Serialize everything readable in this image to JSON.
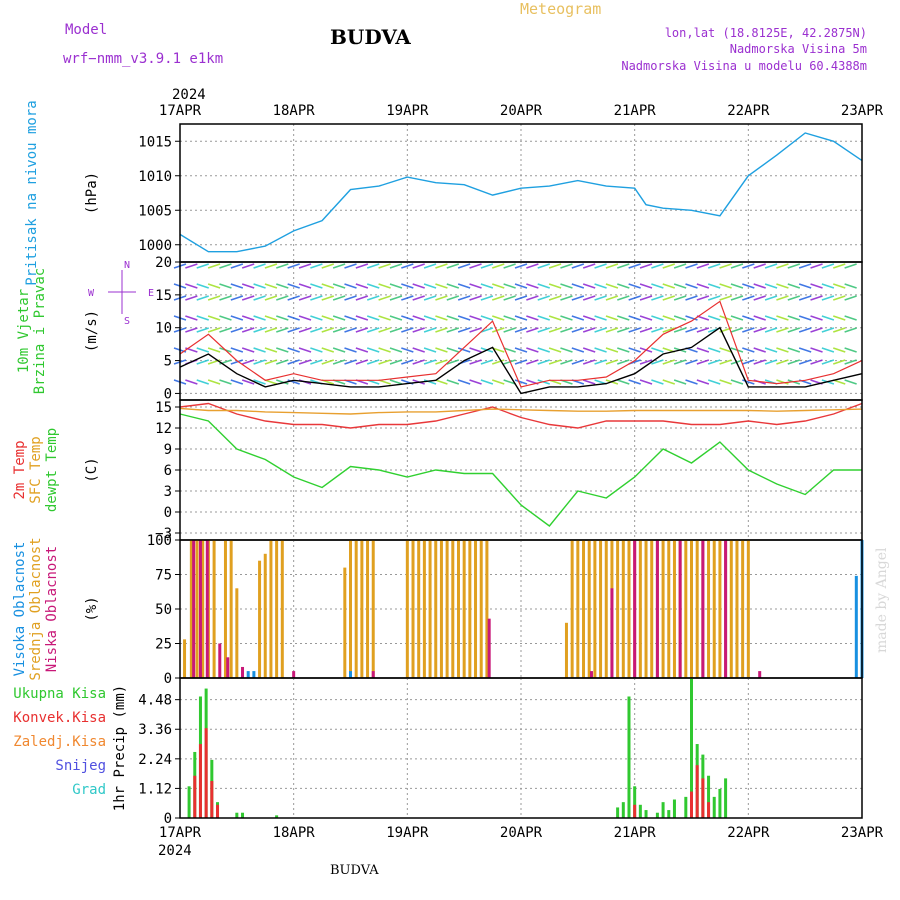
{
  "header": {
    "model_label": "Model",
    "model_name": "wrf−nmm_v3.9.1  e1km",
    "title": "BUDVA",
    "meteogram": "Meteogram",
    "lonlat": "lon,lat (18.8125E, 42.2875N)",
    "elevation": "Nadmorska Visina 5m",
    "model_elevation": "Nadmorska Visina u modelu 60.4388m",
    "footer_title": "BUDVA",
    "credit": "made by Angel"
  },
  "chart_data": {
    "type": "line",
    "year": "2024",
    "x_ticks": [
      "17APR",
      "18APR",
      "19APR",
      "20APR",
      "21APR",
      "22APR",
      "23APR"
    ],
    "colors": {
      "pressure": "#1fa0e0",
      "temp2m": "#e8383a",
      "sfc": "#e8a030",
      "dewpt": "#30d030",
      "high_cloud": "#1890e0",
      "mid_cloud": "#e0a020",
      "low_cloud": "#c81878",
      "total_precip": "#30c830",
      "conv_precip": "#e83030",
      "frozen_precip": "#f08830",
      "snow": "#5050e0",
      "hail": "#30c8c8",
      "wind_speed": "#000000",
      "gust": "#e83030"
    },
    "panels": [
      {
        "id": "pressure",
        "labels": [
          "Pritisak na nivou mora"
        ],
        "unit": "(hPa)",
        "yticks": [
          1000,
          1005,
          1010,
          1015
        ],
        "ylim": [
          997.5,
          1017.5
        ],
        "series": [
          {
            "key": "pressure",
            "x": [
              0,
              0.25,
              0.5,
              0.75,
              1,
              1.25,
              1.5,
              1.75,
              2,
              2.25,
              2.5,
              2.75,
              3,
              3.25,
              3.5,
              3.75,
              4,
              4.1,
              4.25,
              4.5,
              4.75,
              5,
              5.25,
              5.5,
              5.75,
              6
            ],
            "y": [
              1001.5,
              999,
              999,
              999.8,
              1002,
              1003.5,
              1008,
              1008.5,
              1009.8,
              1009,
              1008.7,
              1007.2,
              1008.2,
              1008.5,
              1009.3,
              1008.5,
              1008.2,
              1005.8,
              1005.3,
              1005,
              1004.2,
              1010,
              1013,
              1016.2,
              1015,
              1012.2
            ]
          }
        ]
      },
      {
        "id": "wind",
        "labels": [
          "10m Vjetar",
          "Brzina i Pravac"
        ],
        "unit": "(m/s)",
        "compass": [
          "N",
          "W",
          "E",
          "S"
        ],
        "yticks": [
          0,
          5,
          10,
          15,
          20
        ],
        "ylim": [
          -1,
          20
        ],
        "series": [
          {
            "key": "wind_speed",
            "x": [
              0,
              0.25,
              0.5,
              0.75,
              1,
              1.25,
              1.5,
              1.75,
              2,
              2.25,
              2.5,
              2.75,
              3,
              3.25,
              3.5,
              3.75,
              4,
              4.25,
              4.5,
              4.75,
              5,
              5.25,
              5.5,
              5.75,
              6
            ],
            "y": [
              4,
              6,
              3,
              1,
              2,
              1.5,
              1,
              1,
              1.5,
              2,
              5,
              7,
              0,
              1,
              1,
              1.5,
              3,
              6,
              7,
              10,
              1,
              1,
              1,
              2,
              3
            ]
          },
          {
            "key": "gust",
            "x": [
              0,
              0.25,
              0.5,
              0.75,
              1,
              1.25,
              1.5,
              1.75,
              2,
              2.25,
              2.5,
              2.75,
              3,
              3.25,
              3.5,
              3.75,
              4,
              4.25,
              4.5,
              4.75,
              5,
              5.25,
              5.5,
              5.75,
              6
            ],
            "y": [
              6,
              9,
              5,
              2,
              3,
              2,
              2,
              2,
              2.5,
              3,
              7,
              11,
              1,
              2,
              2,
              2.5,
              5,
              9,
              11,
              14,
              2,
              1.5,
              2,
              3,
              5
            ]
          }
        ]
      },
      {
        "id": "temperature",
        "labels": [
          "2m Temp",
          "SFC Temp",
          "dewpt Temp"
        ],
        "unit": "(C)",
        "yticks": [
          -3,
          0,
          3,
          6,
          9,
          12,
          15
        ],
        "ylim": [
          -4,
          16
        ],
        "series": [
          {
            "key": "temp2m",
            "x": [
              0,
              0.25,
              0.5,
              0.75,
              1,
              1.25,
              1.5,
              1.75,
              2,
              2.25,
              2.5,
              2.75,
              3,
              3.25,
              3.5,
              3.75,
              4,
              4.25,
              4.5,
              4.75,
              5,
              5.25,
              5.5,
              5.75,
              6
            ],
            "y": [
              15,
              15.5,
              14,
              13,
              12.5,
              12.5,
              12,
              12.5,
              12.5,
              13,
              14,
              15,
              13.5,
              12.5,
              12,
              13,
              13,
              13,
              12.5,
              12.5,
              13,
              12.5,
              13,
              14,
              15.5
            ]
          },
          {
            "key": "sfc",
            "x": [
              0,
              0.25,
              0.5,
              0.75,
              1,
              1.25,
              1.5,
              1.75,
              2,
              2.25,
              2.5,
              2.75,
              3,
              3.25,
              3.5,
              3.75,
              4,
              4.25,
              4.5,
              4.75,
              5,
              5.25,
              5.5,
              5.75,
              6
            ],
            "y": [
              14.8,
              14.5,
              14.5,
              14.3,
              14.2,
              14.1,
              14,
              14.2,
              14.3,
              14.3,
              14.5,
              14.7,
              14.6,
              14.5,
              14.4,
              14.4,
              14.5,
              14.5,
              14.5,
              14.5,
              14.5,
              14.4,
              14.5,
              14.6,
              14.7
            ]
          },
          {
            "key": "dewpt",
            "x": [
              0,
              0.25,
              0.5,
              0.75,
              1,
              1.25,
              1.5,
              1.75,
              2,
              2.25,
              2.5,
              2.75,
              3,
              3.25,
              3.5,
              3.75,
              4,
              4.25,
              4.5,
              4.75,
              5,
              5.25,
              5.5,
              5.75,
              6
            ],
            "y": [
              14,
              13,
              9,
              7.5,
              5,
              3.5,
              6.5,
              6,
              5,
              6,
              5.5,
              5.5,
              1,
              -2,
              3,
              2,
              5,
              9,
              7,
              10,
              6,
              4,
              2.5,
              6,
              6
            ]
          }
        ]
      },
      {
        "id": "cloud",
        "labels": [
          "Visoka Oblacnost",
          "Srednja Oblacnost",
          "Niska Oblacnost"
        ],
        "unit": "(%)",
        "yticks": [
          0,
          25,
          50,
          75,
          100
        ],
        "ylim": [
          0,
          100
        ],
        "bars": [
          {
            "key": "mid_cloud",
            "x": [
              0.04,
              0.1,
              0.15,
              0.2,
              0.25,
              0.3,
              0.4,
              0.45,
              0.5,
              0.7,
              0.75,
              0.8,
              0.85,
              0.9,
              1.45,
              1.5,
              1.55,
              1.6,
              1.65,
              1.7,
              2.0,
              2.05,
              2.1,
              2.15,
              2.2,
              2.25,
              2.3,
              2.35,
              2.4,
              2.45,
              2.5,
              2.55,
              2.6,
              2.65,
              2.7,
              3.4,
              3.45,
              3.5,
              3.55,
              3.6,
              3.65,
              3.7,
              3.75,
              3.8,
              3.85,
              3.9,
              3.95,
              4.0,
              4.05,
              4.1,
              4.15,
              4.2,
              4.25,
              4.3,
              4.35,
              4.4,
              4.45,
              4.5,
              4.55,
              4.6,
              4.65,
              4.7,
              4.75,
              4.8,
              4.85,
              4.9,
              4.95,
              5.0
            ],
            "y": [
              28,
              100,
              100,
              100,
              100,
              100,
              100,
              100,
              65,
              85,
              90,
              100,
              100,
              100,
              80,
              100,
              100,
              100,
              100,
              100,
              100,
              100,
              100,
              100,
              100,
              100,
              100,
              100,
              100,
              100,
              100,
              100,
              100,
              100,
              100,
              40,
              100,
              100,
              100,
              100,
              100,
              100,
              100,
              100,
              100,
              100,
              100,
              100,
              100,
              100,
              100,
              100,
              100,
              100,
              100,
              100,
              100,
              100,
              100,
              100,
              100,
              100,
              100,
              100,
              100,
              100,
              100,
              100
            ]
          },
          {
            "key": "low_cloud",
            "x": [
              0.12,
              0.18,
              0.24,
              0.35,
              0.42,
              0.55,
              1.0,
              1.7,
              2.72,
              3.62,
              3.8,
              4.0,
              4.2,
              4.4,
              4.6,
              4.8,
              5.1
            ],
            "y": [
              100,
              100,
              100,
              25,
              15,
              8,
              5,
              5,
              43,
              5,
              65,
              100,
              100,
              100,
              100,
              100,
              5
            ]
          },
          {
            "key": "high_cloud",
            "x": [
              0.6,
              0.65,
              1.5,
              5.95,
              6.0
            ],
            "y": [
              5,
              5,
              5,
              74,
              100
            ]
          }
        ]
      },
      {
        "id": "precip",
        "labels": [
          "Ukupna Kisa",
          "Konvek.Kisa",
          "Zaledj.Kisa",
          "Snijeg",
          "Grad"
        ],
        "unit": "1hr Precip (mm)",
        "yticks": [
          0,
          1.12,
          2.24,
          3.36,
          4.48
        ],
        "ylim": [
          0,
          5.3
        ],
        "bars": [
          {
            "key": "total_precip",
            "x": [
              0.08,
              0.13,
              0.18,
              0.23,
              0.28,
              0.33,
              0.5,
              0.55,
              0.85,
              3.85,
              3.9,
              3.95,
              4.0,
              4.05,
              4.1,
              4.2,
              4.25,
              4.3,
              4.35,
              4.45,
              4.5,
              4.55,
              4.6,
              4.65,
              4.7,
              4.75,
              4.8
            ],
            "y": [
              1.2,
              2.5,
              4.6,
              4.9,
              2.2,
              0.6,
              0.2,
              0.2,
              0.1,
              0.4,
              0.6,
              4.6,
              1.2,
              0.5,
              0.3,
              0.2,
              0.6,
              0.3,
              0.7,
              0.8,
              5.3,
              2.8,
              2.4,
              1.6,
              0.8,
              1.1,
              1.5
            ]
          },
          {
            "key": "conv_precip",
            "x": [
              0.13,
              0.18,
              0.23,
              0.28,
              0.33,
              4.0,
              4.5,
              4.55,
              4.6,
              4.65
            ],
            "y": [
              1.6,
              2.8,
              3.4,
              1.4,
              0.5,
              0.5,
              1.0,
              2.0,
              1.5,
              0.6
            ]
          }
        ]
      }
    ]
  }
}
